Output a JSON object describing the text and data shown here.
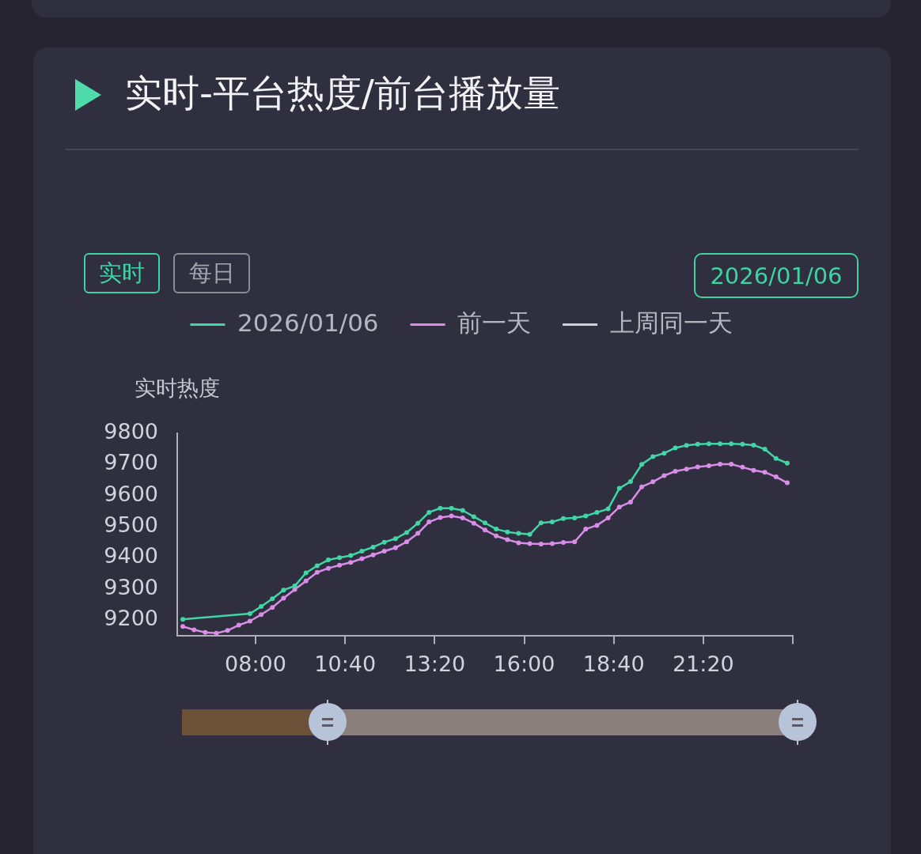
{
  "chart_data": {
    "type": "line",
    "title": "实时-平台热度/前台播放量",
    "ylabel": "实时热度",
    "annotations": [
      "实时",
      "每日",
      "2026/01/06"
    ],
    "x": [
      5.8333,
      6.1667,
      6.5,
      6.8333,
      7.1667,
      7.5,
      7.8333,
      8.1667,
      8.5,
      8.8333,
      9.1667,
      9.5,
      9.8333,
      10.1667,
      10.5,
      10.8333,
      11.1667,
      11.5,
      11.8333,
      12.1667,
      12.5,
      12.8333,
      13.1667,
      13.5,
      13.8333,
      14.1667,
      14.5,
      14.8333,
      15.1667,
      15.5,
      15.8333,
      16.1667,
      16.5,
      16.8333,
      17.1667,
      17.5,
      17.8333,
      18.1667,
      18.5,
      18.8333,
      19.1667,
      19.5,
      19.8333,
      20.1667,
      20.5,
      20.8333,
      21.1667,
      21.5,
      21.8333,
      22.1667,
      22.5,
      22.8333,
      23.1667,
      23.5,
      23.8333
    ],
    "xlim": [
      5.6667,
      24
    ],
    "xticks": [
      {
        "value": 8,
        "label": "08:00"
      },
      {
        "value": 10.6667,
        "label": "10:40"
      },
      {
        "value": 13.3333,
        "label": "13:20"
      },
      {
        "value": 16,
        "label": "16:00"
      },
      {
        "value": 18.6667,
        "label": "18:40"
      },
      {
        "value": 21.3333,
        "label": "21:20"
      },
      {
        "value": 24,
        "label": null
      }
    ],
    "ylim": [
      9150,
      9800
    ],
    "yticks": [
      9200,
      9300,
      9400,
      9500,
      9600,
      9700,
      9800
    ],
    "series": [
      {
        "name": "2026/01/06",
        "color": "#40d6a6",
        "x": [
          5.8333,
          7.8333,
          8.1667,
          8.5,
          8.8333,
          9.1667,
          9.5,
          9.8333,
          10.1667,
          10.5,
          10.8333,
          11.1667,
          11.5,
          11.8333,
          12.1667,
          12.5,
          12.8333,
          13.1667,
          13.5,
          13.8333,
          14.1667,
          14.5,
          14.8333,
          15.1667,
          15.5,
          15.8333,
          16.1667,
          16.5,
          16.8333,
          17.1667,
          17.5,
          17.8333,
          18.1667,
          18.5,
          18.8333,
          19.1667,
          19.5,
          19.8333,
          20.1667,
          20.5,
          20.8333,
          21.1667,
          21.5,
          21.8333,
          22.1667,
          22.5,
          22.8333,
          23.1667,
          23.5,
          23.8333
        ],
        "values": [
          9202,
          9220,
          9243,
          9268,
          9296,
          9309,
          9351,
          9374,
          9393,
          9400,
          9407,
          9421,
          9434,
          9450,
          9461,
          9481,
          9511,
          9546,
          9559,
          9559,
          9552,
          9532,
          9512,
          9492,
          9483,
          9478,
          9475,
          9512,
          9515,
          9526,
          9528,
          9534,
          9546,
          9557,
          9623,
          9645,
          9700,
          9725,
          9736,
          9753,
          9761,
          9765,
          9766,
          9766,
          9766,
          9765,
          9762,
          9749,
          9719,
          9704
        ]
      },
      {
        "name": "前一天",
        "color": "#d88de6",
        "values": [
          9179,
          9168,
          9160,
          9157,
          9166,
          9183,
          9196,
          9217,
          9240,
          9270,
          9298,
          9325,
          9353,
          9366,
          9376,
          9385,
          9397,
          9409,
          9421,
          9432,
          9451,
          9478,
          9515,
          9529,
          9534,
          9528,
          9511,
          9489,
          9470,
          9458,
          9448,
          9445,
          9444,
          9445,
          9449,
          9451,
          9492,
          9504,
          9528,
          9563,
          9579,
          9628,
          9644,
          9664,
          9678,
          9685,
          9692,
          9696,
          9701,
          9701,
          9691,
          9681,
          9675,
          9660,
          9641
        ]
      },
      {
        "name": "上周同一天",
        "color": "#cfcfd4",
        "values": [
          null,
          null,
          null,
          null,
          null,
          null,
          null,
          null,
          null,
          null,
          null,
          null,
          null,
          null,
          null,
          null,
          null,
          null,
          null,
          null,
          null,
          null,
          null,
          null,
          null,
          null,
          null,
          null,
          null,
          null,
          null,
          null,
          null,
          null,
          null,
          null,
          null,
          null,
          null,
          null,
          null,
          null,
          null,
          null,
          null,
          null,
          null,
          null,
          null,
          null,
          null,
          null,
          null,
          null,
          null
        ]
      }
    ],
    "legend": "top",
    "marker": "circle",
    "line_style": "solid"
  }
}
